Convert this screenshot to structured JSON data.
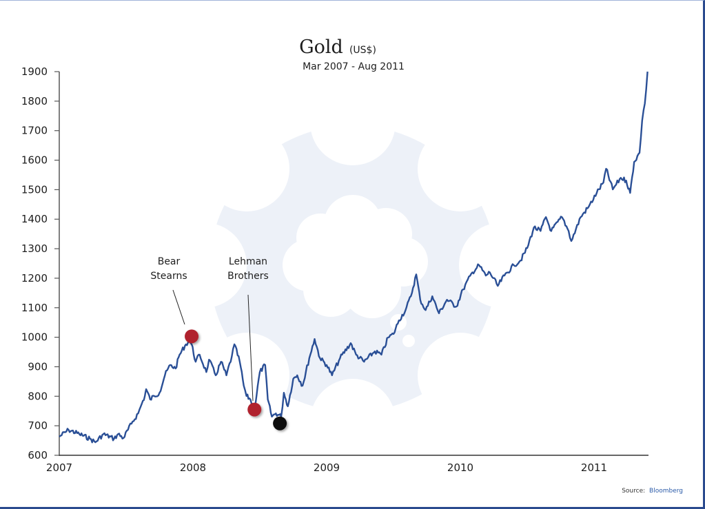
{
  "chart_data": {
    "type": "line",
    "title": "Gold",
    "title_unit": "(US$)",
    "subtitle": "Mar 2007 - Aug 2011",
    "xlabel": "",
    "ylabel": "",
    "xlim": [
      2007,
      2011.4
    ],
    "ylim": [
      600,
      1900
    ],
    "x_ticks": [
      2007,
      2008,
      2009,
      2010,
      2011
    ],
    "x_tick_labels": [
      "2007",
      "2008",
      "2009",
      "2010",
      "2011"
    ],
    "y_ticks": [
      600,
      700,
      800,
      900,
      1000,
      1100,
      1200,
      1300,
      1400,
      1500,
      1600,
      1700,
      1800,
      1900
    ],
    "y_tick_labels": [
      "600",
      "700",
      "800",
      "900",
      "1000",
      "1100",
      "1200",
      "1300",
      "1400",
      "1500",
      "1600",
      "1700",
      "1800",
      "1900"
    ],
    "grid": false,
    "legend": "none",
    "series": [
      {
        "name": "Gold price (US$)",
        "color": "#2a4f96",
        "x": [
          2007.0,
          2007.07,
          2007.15,
          2007.23,
          2007.27,
          2007.33,
          2007.41,
          2007.44,
          2007.48,
          2007.54,
          2007.59,
          2007.61,
          2007.64,
          2007.65,
          2007.68,
          2007.71,
          2007.75,
          2007.79,
          2007.83,
          2007.87,
          2007.9,
          2007.94,
          2007.97,
          2007.99,
          2008.02,
          2008.05,
          2008.1,
          2008.12,
          2008.17,
          2008.21,
          2008.25,
          2008.29,
          2008.31,
          2008.35,
          2008.38,
          2008.4,
          2008.43,
          2008.46,
          2008.5,
          2008.54,
          2008.56,
          2008.59,
          2008.62,
          2008.66,
          2008.68,
          2008.71,
          2008.75,
          2008.78,
          2008.82,
          2008.87,
          2008.91,
          2008.95,
          2009.0,
          2009.04,
          2009.1,
          2009.18,
          2009.22,
          2009.28,
          2009.36,
          2009.41,
          2009.46,
          2009.5,
          2009.54,
          2009.59,
          2009.63,
          2009.67,
          2009.7,
          2009.74,
          2009.79,
          2009.84,
          2009.9,
          2009.97,
          2010.02,
          2010.09,
          2010.14,
          2010.19,
          2010.22,
          2010.28,
          2010.33,
          2010.4,
          2010.45,
          2010.5,
          2010.55,
          2010.6,
          2010.64,
          2010.68,
          2010.76,
          2010.81,
          2010.83,
          2010.9,
          2010.96,
          2011.02,
          2011.07,
          2011.09,
          2011.14,
          2011.2,
          2011.24,
          2011.27,
          2011.3,
          2011.34,
          2011.36,
          2011.38,
          2011.4
        ],
        "y": [
          663,
          686,
          672,
          656,
          644,
          672,
          656,
          672,
          658,
          707,
          742,
          766,
          801,
          824,
          789,
          801,
          812,
          871,
          906,
          894,
          941,
          971,
          987,
          976,
          917,
          941,
          882,
          924,
          871,
          917,
          871,
          934,
          976,
          917,
          836,
          801,
          789,
          754,
          882,
          906,
          789,
          731,
          742,
          731,
          812,
          766,
          859,
          871,
          836,
          929,
          994,
          929,
          906,
          871,
          929,
          980,
          941,
          917,
          952,
          941,
          999,
          1011,
          1057,
          1092,
          1139,
          1213,
          1127,
          1092,
          1139,
          1081,
          1127,
          1104,
          1162,
          1220,
          1244,
          1209,
          1220,
          1174,
          1209,
          1244,
          1260,
          1302,
          1372,
          1360,
          1407,
          1360,
          1407,
          1360,
          1326,
          1407,
          1442,
          1489,
          1524,
          1571,
          1501,
          1540,
          1531,
          1489,
          1594,
          1625,
          1734,
          1792,
          1900
        ]
      }
    ],
    "annotations": [
      {
        "label_lines": [
          "Bear",
          "Stearns"
        ],
        "x": 2007.99,
        "y": 1003,
        "marker_color": "#b0222f"
      },
      {
        "label_lines": [
          "Lehman",
          "Brothers"
        ],
        "x": 2008.46,
        "y": 755,
        "marker_color": "#b0222f"
      },
      {
        "label_lines": [],
        "x": 2008.65,
        "y": 708,
        "marker_color": "#111111"
      }
    ],
    "source_prefix": "Source:",
    "source_name": "Bloomberg"
  }
}
